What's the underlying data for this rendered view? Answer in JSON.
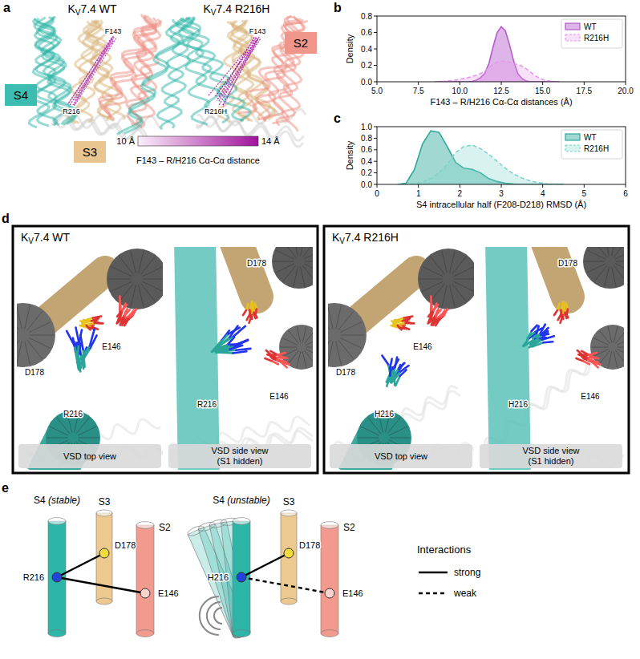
{
  "panel_labels": [
    "a",
    "b",
    "c",
    "d",
    "e"
  ],
  "chart_data": [
    {
      "type": "area",
      "x_label": "F143 – R/H216 Cα-Cα distances (Å)",
      "y_label": "Density",
      "x": [
        8.5,
        8.75,
        9,
        9.25,
        9.5,
        9.75,
        10,
        10.25,
        10.5,
        10.75,
        11,
        11.25,
        11.5,
        11.75,
        12,
        12.25,
        12.5,
        12.75,
        13,
        13.25,
        13.5,
        13.75,
        14,
        14.25,
        14.5,
        14.75,
        15,
        15.25,
        15.5,
        15.75,
        16
      ],
      "series": [
        {
          "name": "WT",
          "color": "#b65ccb",
          "line_style": "solid",
          "values": [
            0,
            0,
            0,
            0,
            0,
            0,
            0,
            0,
            0,
            0.005,
            0.02,
            0.05,
            0.1,
            0.22,
            0.42,
            0.6,
            0.67,
            0.62,
            0.45,
            0.25,
            0.1,
            0.04,
            0.01,
            0,
            0,
            0,
            0,
            0,
            0,
            0,
            0
          ]
        },
        {
          "name": "R216H",
          "color": "#e39ae8",
          "line_style": "dashed",
          "values": [
            0,
            0.003,
            0.005,
            0.01,
            0.015,
            0.02,
            0.03,
            0.04,
            0.05,
            0.065,
            0.08,
            0.1,
            0.13,
            0.17,
            0.21,
            0.24,
            0.25,
            0.25,
            0.24,
            0.22,
            0.21,
            0.19,
            0.16,
            0.12,
            0.08,
            0.05,
            0.03,
            0.015,
            0.007,
            0.002,
            0
          ]
        }
      ],
      "xlim": [
        5,
        20
      ],
      "xticks": [
        {
          "value": 5,
          "label": "5.0"
        },
        7.5,
        {
          "value": 10,
          "label": "10.0"
        },
        12.5,
        {
          "value": 15,
          "label": "15.0"
        },
        17.5,
        {
          "value": 20,
          "label": "20.0"
        }
      ],
      "ylim": [
        0,
        0.8
      ],
      "yticks": [
        {
          "value": 0,
          "label": "0.0"
        },
        0.2,
        0.4,
        0.6,
        0.8
      ],
      "legend": "upper right"
    },
    {
      "type": "area",
      "x_label": "S4 intracellular half (F208-D218) RMSD (Å)",
      "y_label": "Density",
      "x": [
        0.5,
        0.7,
        0.9,
        1.1,
        1.3,
        1.5,
        1.7,
        1.9,
        2.1,
        2.3,
        2.5,
        2.7,
        2.9,
        3.1,
        3.3,
        3.5,
        3.7,
        3.9,
        4.1,
        4.3,
        4.5
      ],
      "series": [
        {
          "name": "WT",
          "color": "#2fa89a",
          "line_style": "solid",
          "values": [
            0,
            0.02,
            0.25,
            0.7,
            0.93,
            0.9,
            0.65,
            0.38,
            0.28,
            0.26,
            0.2,
            0.1,
            0.05,
            0.02,
            0.005,
            0,
            0,
            0,
            0,
            0,
            0
          ]
        },
        {
          "name": "R216H",
          "color": "#7fd3ca",
          "line_style": "dashed",
          "values": [
            0,
            0,
            0.01,
            0.04,
            0.1,
            0.2,
            0.35,
            0.55,
            0.66,
            0.68,
            0.62,
            0.52,
            0.4,
            0.28,
            0.18,
            0.11,
            0.06,
            0.03,
            0.01,
            0.003,
            0
          ]
        }
      ],
      "xlim": [
        0,
        6
      ],
      "xticks": [
        0,
        1,
        2,
        3,
        4,
        5,
        6
      ],
      "ylim": [
        0,
        1
      ],
      "yticks": [
        {
          "value": 0,
          "label": "0.0"
        },
        0.2,
        0.4,
        0.6,
        0.8,
        {
          "value": 1,
          "label": "1.0"
        }
      ],
      "legend": "upper right"
    }
  ],
  "panel_a": {
    "titles": [
      "KV7.4 WT",
      "KV7.4 R216H"
    ],
    "helix_labels": [
      "S4",
      "S3",
      "S2"
    ],
    "residue_labels": [
      [
        "F143",
        "R216"
      ],
      [
        "F143",
        "R216H"
      ]
    ],
    "colorbar": {
      "range": [
        10,
        14
      ],
      "ticks": [
        {
          "value": 10,
          "label": "10 Å"
        },
        {
          "value": 14,
          "label": "14 Å"
        }
      ],
      "title": "F143 – R/H216 Cα-Cα distance"
    }
  },
  "panel_d": {
    "panels": [
      {
        "title": "KV7.4 WT",
        "top_view": {
          "labels": [
            "D178",
            "E146",
            "R216"
          ],
          "caption": "VSD top view"
        },
        "side_view": {
          "labels": [
            "D178",
            "E146",
            "R216"
          ],
          "caption": [
            "VSD side view",
            "(S1 hidden)"
          ]
        }
      },
      {
        "title": "KV7.4 R216H",
        "top_view": {
          "labels": [
            "D178",
            "E146",
            "H216"
          ],
          "caption": "VSD top view"
        },
        "side_view": {
          "labels": [
            "D178",
            "E146",
            "H216"
          ],
          "caption": [
            "VSD side view",
            "(S1 hidden)"
          ]
        }
      }
    ]
  },
  "panel_e": {
    "schemes": [
      {
        "title": "S4 (stable)",
        "helix_labels": [
          "S3",
          "S2"
        ],
        "residues": [
          "R216",
          "D178",
          "E146"
        ],
        "interactions": [
          {
            "to": "D178",
            "line_style": "solid"
          },
          {
            "to": "E146",
            "line_style": "solid"
          }
        ]
      },
      {
        "title": "S4 (unstable)",
        "helix_labels": [
          "S3",
          "S2"
        ],
        "residues": [
          "H216",
          "D178",
          "E146"
        ],
        "interactions": [
          {
            "to": "D178",
            "line_style": "solid"
          },
          {
            "to": "E146",
            "line_style": "dashed"
          }
        ]
      }
    ],
    "legend": {
      "title": "Interactions",
      "entries": [
        {
          "label": "strong",
          "line_style": "solid"
        },
        {
          "label": "weak",
          "line_style": "dashed"
        }
      ]
    }
  }
}
